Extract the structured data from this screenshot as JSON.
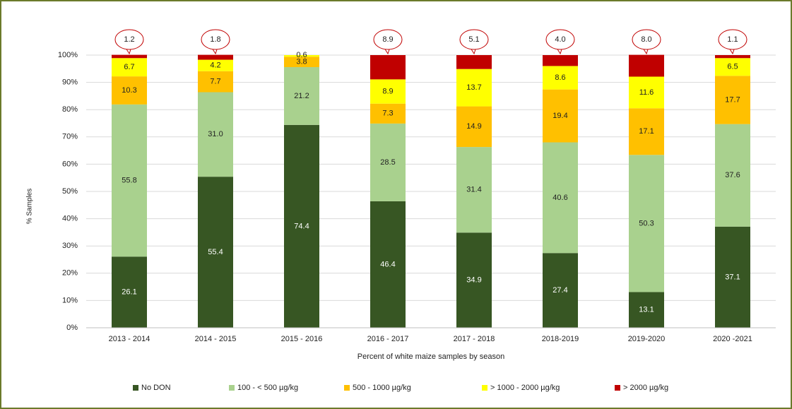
{
  "chart_data": {
    "type": "stacked_bar",
    "x_label": "Percent of white maize samples by season",
    "y_label": "% Samples",
    "categories": [
      "2013 - 2014",
      "2014 - 2015",
      "2015 - 2016",
      "2016 - 2017",
      "2017 - 2018",
      "2018-2019",
      "2019-2020",
      "2020 -2021"
    ],
    "series": [
      {
        "name": "No DON",
        "color": "#375623",
        "values": [
          26.1,
          55.4,
          74.4,
          46.4,
          34.9,
          27.4,
          13.1,
          37.1
        ],
        "value_labels": [
          "26.1",
          "55.4",
          "74.4",
          "46.4",
          "34.9",
          "27.4",
          "13.1",
          "37.1"
        ]
      },
      {
        "name": "100 - < 500 µg/kg",
        "color": "#a9d18e",
        "values": [
          55.8,
          31.0,
          21.2,
          28.5,
          31.4,
          40.6,
          50.3,
          37.6
        ],
        "value_labels": [
          "55.8",
          "31.0",
          "21.2",
          "28.5",
          "31.4",
          "40.6",
          "50.3",
          "37.6"
        ]
      },
      {
        "name": "500 - 1000 µg/kg",
        "color": "#ffc000",
        "values": [
          10.3,
          7.7,
          3.8,
          7.3,
          14.9,
          19.4,
          17.1,
          17.7
        ],
        "value_labels": [
          "10.3",
          "7.7",
          "3.8",
          "7.3",
          "14.9",
          "19.4",
          "17.1",
          "17.7"
        ]
      },
      {
        "name": "> 1000 - 2000 µg/kg",
        "color": "#ffff00",
        "values": [
          6.7,
          4.2,
          0.6,
          8.9,
          13.7,
          8.6,
          11.6,
          6.5
        ],
        "value_labels": [
          "6.7",
          "4.2",
          "0.6",
          "8.9",
          "13.7",
          "8.6",
          "11.6",
          "6.5"
        ]
      },
      {
        "name": "> 2000 µg/kg",
        "color": "#c00000",
        "values": [
          1.2,
          1.8,
          null,
          8.9,
          5.1,
          4.0,
          8.0,
          1.1
        ],
        "value_labels": [
          "1.2",
          "1.8",
          null,
          "8.9",
          "5.1",
          "4.0",
          "8.0",
          "1.1"
        ]
      }
    ],
    "ylim": [
      0,
      100
    ],
    "yticks": [
      {
        "value": 0,
        "label": "0%"
      },
      {
        "value": 10,
        "label": "10%"
      },
      {
        "value": 20,
        "label": "20%"
      },
      {
        "value": 30,
        "label": "30%"
      },
      {
        "value": 40,
        "label": "40%"
      },
      {
        "value": 50,
        "label": "50%"
      },
      {
        "value": 60,
        "label": "60%"
      },
      {
        "value": 70,
        "label": "70%"
      },
      {
        "value": 80,
        "label": "80%"
      },
      {
        "value": 90,
        "label": "90%"
      },
      {
        "value": 100,
        "label": "100%"
      }
    ],
    "grid": true,
    "legend": "bottom"
  }
}
